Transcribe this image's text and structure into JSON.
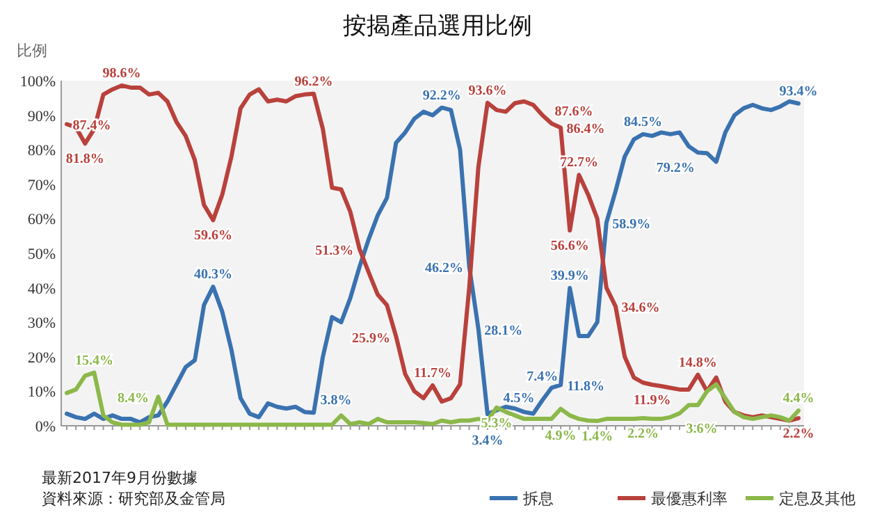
{
  "chart_data": {
    "type": "line",
    "title": "按揭產品選用比例",
    "ylabel": "比例",
    "annotations": [
      "最新2017年9月份數據",
      "資料來源：研究部及金管局"
    ],
    "categories": [
      null,
      null,
      null,
      null,
      null,
      null,
      null,
      null,
      null,
      null,
      null,
      null,
      null,
      null,
      null,
      null,
      null,
      null,
      null,
      null,
      null,
      null,
      null,
      null,
      null,
      null,
      null,
      null,
      null,
      null,
      null,
      null,
      null,
      null,
      null,
      null,
      null,
      null,
      null,
      null,
      null,
      null,
      null,
      null,
      null,
      null,
      null,
      null,
      null,
      null,
      null,
      null,
      null,
      null,
      null,
      null,
      null,
      null,
      null,
      null,
      null,
      null,
      null,
      null,
      null,
      null,
      null,
      null,
      null,
      null,
      null,
      null,
      null,
      null,
      null,
      null,
      null,
      null,
      null,
      null,
      null
    ],
    "ylim": [
      0,
      100
    ],
    "yticks": [
      {
        "value": 0,
        "label": "0%"
      },
      {
        "value": 10,
        "label": "10%"
      },
      {
        "value": 20,
        "label": "20%"
      },
      {
        "value": 30,
        "label": "30%"
      },
      {
        "value": 40,
        "label": "40%"
      },
      {
        "value": 50,
        "label": "50%"
      },
      {
        "value": 60,
        "label": "60%"
      },
      {
        "value": 70,
        "label": "70%"
      },
      {
        "value": 80,
        "label": "80%"
      },
      {
        "value": 90,
        "label": "90%"
      },
      {
        "value": 100,
        "label": "100%"
      }
    ],
    "tick_labels": "y",
    "grid": false,
    "legend": "bottom right",
    "marker": "none",
    "line_style": "solid",
    "series": [
      {
        "name": "拆息",
        "color": "#3a72b0",
        "values": [
          3.5,
          2.5,
          2,
          3.5,
          2,
          3,
          2,
          2,
          1,
          2.5,
          3,
          7,
          12,
          17,
          19,
          35,
          40.3,
          33,
          22,
          8,
          3.5,
          2.5,
          6.5,
          5.5,
          5,
          5.5,
          4,
          3.8,
          20,
          31.5,
          30,
          37,
          46,
          54,
          61,
          66,
          82,
          85,
          89,
          91,
          90,
          92.2,
          91.5,
          80,
          46.2,
          28.1,
          3.4,
          4.5,
          5.5,
          5,
          4,
          3.5,
          7.4,
          11,
          11.8,
          39.9,
          26,
          26,
          30,
          58.9,
          68,
          78,
          83,
          84.5,
          84,
          85,
          84.5,
          85,
          81,
          79.2,
          79,
          76.5,
          85,
          90,
          92,
          93,
          92,
          91.5,
          92.5,
          94,
          93.4
        ],
        "value_labels": [
          null,
          null,
          null,
          null,
          null,
          null,
          null,
          null,
          null,
          null,
          null,
          null,
          null,
          null,
          null,
          null,
          "40.3%",
          null,
          null,
          null,
          null,
          null,
          null,
          null,
          null,
          null,
          null,
          "3.8%",
          null,
          null,
          null,
          null,
          null,
          null,
          null,
          null,
          null,
          null,
          null,
          null,
          null,
          "92.2%",
          null,
          null,
          "46.2%",
          "28.1%",
          "3.4%",
          "4.5%",
          null,
          null,
          null,
          null,
          "7.4%",
          null,
          "11.8%",
          "39.9%",
          null,
          null,
          null,
          "58.9%",
          null,
          null,
          null,
          "84.5%",
          null,
          null,
          null,
          null,
          null,
          "79.2%",
          null,
          null,
          null,
          null,
          null,
          null,
          null,
          null,
          null,
          null,
          "93.4%"
        ]
      },
      {
        "name": "最優惠利率",
        "color": "#b9413c",
        "values": [
          87.4,
          86.5,
          81.8,
          86,
          96,
          97.5,
          98.6,
          98,
          98,
          96,
          96.5,
          94,
          88,
          84,
          77,
          64,
          59.6,
          67,
          78,
          92,
          96,
          97.5,
          94,
          94.5,
          94,
          95.5,
          96,
          96.2,
          86,
          69,
          68.5,
          62,
          51.3,
          44.5,
          38,
          35,
          25.9,
          15,
          10,
          8,
          11.7,
          7,
          8,
          12,
          40,
          75,
          93.6,
          91.5,
          91,
          93.5,
          94,
          93,
          90,
          87.6,
          86.4,
          56.6,
          72.7,
          67,
          60,
          40,
          34.6,
          20,
          14,
          12.5,
          11.9,
          11.5,
          11,
          10.5,
          10.5,
          14.8,
          10,
          14,
          7,
          4,
          3,
          2.5,
          3,
          2.5,
          2,
          1.5,
          2.2
        ],
        "value_labels": [
          "87.4%",
          null,
          "81.8%",
          null,
          null,
          null,
          "98.6%",
          null,
          null,
          null,
          null,
          null,
          null,
          null,
          null,
          null,
          "59.6%",
          null,
          null,
          null,
          null,
          null,
          null,
          null,
          null,
          null,
          null,
          "96.2%",
          null,
          null,
          null,
          null,
          "51.3%",
          null,
          null,
          null,
          "25.9%",
          null,
          null,
          null,
          "11.7%",
          null,
          null,
          null,
          null,
          null,
          "93.6%",
          null,
          null,
          null,
          null,
          null,
          null,
          "87.6%",
          "86.4%",
          "56.6%",
          "72.7%",
          null,
          null,
          null,
          "34.6%",
          null,
          null,
          null,
          "11.9%",
          null,
          null,
          null,
          null,
          "14.8%",
          null,
          null,
          null,
          null,
          null,
          null,
          null,
          null,
          null,
          null,
          "2.2%"
        ]
      },
      {
        "name": "定息及其他",
        "color": "#8cb84a",
        "values": [
          9.5,
          10.5,
          14.5,
          15.4,
          3,
          1,
          0.3,
          0.3,
          0.3,
          1,
          8.4,
          0.3,
          0.3,
          0.3,
          0.3,
          0.3,
          0.3,
          0.3,
          0.3,
          0.3,
          0.3,
          0.3,
          0.3,
          0.3,
          0.3,
          0.3,
          0.3,
          0.3,
          0.3,
          0.3,
          3,
          0.5,
          1,
          0.5,
          2,
          1,
          1,
          1,
          1,
          0.8,
          0.5,
          1.5,
          1,
          1.5,
          1.5,
          2,
          1.5,
          5.3,
          4,
          3,
          2,
          2,
          2,
          2,
          4.9,
          3,
          2,
          1.5,
          1.4,
          2,
          2,
          2,
          2,
          2.2,
          2,
          2,
          2.5,
          3.6,
          6,
          6,
          10,
          12,
          8,
          4,
          2.5,
          2,
          2.5,
          3,
          2.5,
          1.5,
          4.4
        ],
        "value_labels": [
          null,
          null,
          null,
          "15.4%",
          null,
          null,
          null,
          null,
          null,
          null,
          "8.4%",
          null,
          null,
          null,
          null,
          null,
          null,
          null,
          null,
          null,
          null,
          null,
          null,
          null,
          null,
          null,
          null,
          null,
          null,
          null,
          null,
          null,
          null,
          null,
          null,
          null,
          null,
          null,
          null,
          null,
          null,
          null,
          null,
          null,
          null,
          null,
          null,
          "5.3%",
          null,
          null,
          null,
          null,
          null,
          null,
          "4.9%",
          null,
          null,
          null,
          "1.4%",
          null,
          null,
          null,
          null,
          "2.2%",
          null,
          null,
          null,
          "3.6%",
          null,
          null,
          null,
          null,
          null,
          null,
          null,
          null,
          null,
          null,
          null,
          null,
          "4.4%"
        ]
      }
    ]
  }
}
